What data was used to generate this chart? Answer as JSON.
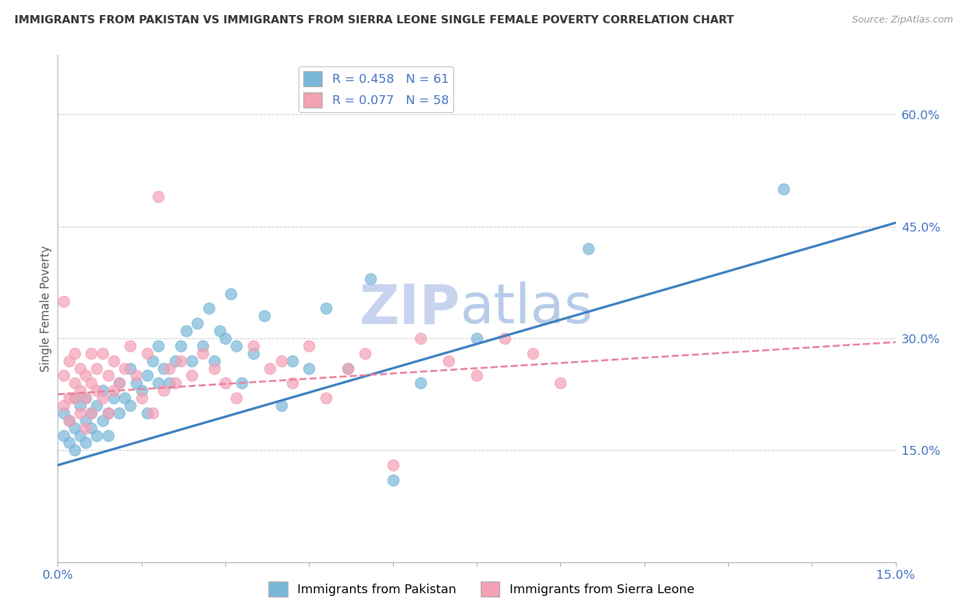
{
  "title": "IMMIGRANTS FROM PAKISTAN VS IMMIGRANTS FROM SIERRA LEONE SINGLE FEMALE POVERTY CORRELATION CHART",
  "source": "Source: ZipAtlas.com",
  "ylabel": "Single Female Poverty",
  "ylabel_right_ticks": [
    "60.0%",
    "45.0%",
    "30.0%",
    "15.0%"
  ],
  "ylabel_right_vals": [
    0.6,
    0.45,
    0.3,
    0.15
  ],
  "xmin": 0.0,
  "xmax": 0.15,
  "ymin": 0.0,
  "ymax": 0.68,
  "pakistan_R": 0.458,
  "pakistan_N": 61,
  "sierraleone_R": 0.077,
  "sierraleone_N": 58,
  "pakistan_color": "#7ab8d9",
  "sierraleone_color": "#f4a0b5",
  "pakistan_line_color": "#3c7fc0",
  "sierraleone_line_color": "#e8829a",
  "watermark": "ZIPatlas",
  "pakistan_x": [
    0.001,
    0.001,
    0.002,
    0.002,
    0.003,
    0.003,
    0.003,
    0.004,
    0.004,
    0.005,
    0.005,
    0.005,
    0.006,
    0.006,
    0.007,
    0.007,
    0.008,
    0.008,
    0.009,
    0.009,
    0.01,
    0.011,
    0.011,
    0.012,
    0.013,
    0.013,
    0.014,
    0.015,
    0.016,
    0.016,
    0.017,
    0.018,
    0.018,
    0.019,
    0.02,
    0.021,
    0.022,
    0.023,
    0.024,
    0.025,
    0.026,
    0.027,
    0.028,
    0.029,
    0.03,
    0.031,
    0.032,
    0.033,
    0.035,
    0.037,
    0.04,
    0.042,
    0.045,
    0.048,
    0.052,
    0.056,
    0.06,
    0.065,
    0.075,
    0.095,
    0.13
  ],
  "pakistan_y": [
    0.2,
    0.17,
    0.19,
    0.16,
    0.22,
    0.18,
    0.15,
    0.21,
    0.17,
    0.19,
    0.16,
    0.22,
    0.2,
    0.18,
    0.21,
    0.17,
    0.23,
    0.19,
    0.2,
    0.17,
    0.22,
    0.24,
    0.2,
    0.22,
    0.26,
    0.21,
    0.24,
    0.23,
    0.25,
    0.2,
    0.27,
    0.24,
    0.29,
    0.26,
    0.24,
    0.27,
    0.29,
    0.31,
    0.27,
    0.32,
    0.29,
    0.34,
    0.27,
    0.31,
    0.3,
    0.36,
    0.29,
    0.24,
    0.28,
    0.33,
    0.21,
    0.27,
    0.26,
    0.34,
    0.26,
    0.38,
    0.11,
    0.24,
    0.3,
    0.42,
    0.5
  ],
  "sierraleone_x": [
    0.001,
    0.001,
    0.001,
    0.002,
    0.002,
    0.002,
    0.003,
    0.003,
    0.003,
    0.004,
    0.004,
    0.004,
    0.005,
    0.005,
    0.005,
    0.006,
    0.006,
    0.006,
    0.007,
    0.007,
    0.008,
    0.008,
    0.009,
    0.009,
    0.01,
    0.01,
    0.011,
    0.012,
    0.013,
    0.014,
    0.015,
    0.016,
    0.017,
    0.018,
    0.019,
    0.02,
    0.021,
    0.022,
    0.024,
    0.026,
    0.028,
    0.03,
    0.032,
    0.035,
    0.038,
    0.04,
    0.042,
    0.045,
    0.048,
    0.052,
    0.055,
    0.06,
    0.065,
    0.07,
    0.075,
    0.08,
    0.085,
    0.09
  ],
  "sierraleone_y": [
    0.25,
    0.21,
    0.35,
    0.22,
    0.27,
    0.19,
    0.24,
    0.28,
    0.22,
    0.26,
    0.23,
    0.2,
    0.25,
    0.22,
    0.18,
    0.28,
    0.24,
    0.2,
    0.26,
    0.23,
    0.28,
    0.22,
    0.25,
    0.2,
    0.27,
    0.23,
    0.24,
    0.26,
    0.29,
    0.25,
    0.22,
    0.28,
    0.2,
    0.49,
    0.23,
    0.26,
    0.24,
    0.27,
    0.25,
    0.28,
    0.26,
    0.24,
    0.22,
    0.29,
    0.26,
    0.27,
    0.24,
    0.29,
    0.22,
    0.26,
    0.28,
    0.13,
    0.3,
    0.27,
    0.25,
    0.3,
    0.28,
    0.24
  ],
  "grid_color": "#cccccc",
  "bg_color": "#ffffff",
  "title_color": "#333333",
  "axis_label_color": "#4472c4",
  "watermark_color": "#dde4f5"
}
